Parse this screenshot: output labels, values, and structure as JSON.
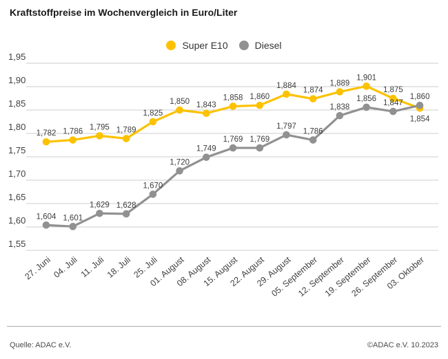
{
  "title": "Kraftstoffpreise im Wochenvergleich in Euro/Liter",
  "legend": {
    "items": [
      {
        "label": "Super E10",
        "color": "#FCC200"
      },
      {
        "label": "Diesel",
        "color": "#919191"
      }
    ]
  },
  "footer": {
    "source": "Quelle: ADAC e.V.",
    "copyright": "©ADAC e.V. 10.2023"
  },
  "colors": {
    "grid": "#cccccc",
    "axis_text": "#404040",
    "point_label": "#3c3c3c"
  },
  "chart_data": {
    "type": "line",
    "title": "Kraftstoffpreise im Wochenvergleich in Euro/Liter",
    "xlabel": "",
    "ylabel": "Euro/Liter",
    "ylim": [
      1.55,
      1.95
    ],
    "grid": true,
    "legend_position": "top-center",
    "yticks": [
      1.95,
      1.9,
      1.85,
      1.8,
      1.75,
      1.7,
      1.65,
      1.6,
      1.55
    ],
    "categories": [
      "27. Juni",
      "04. Juli",
      "11. Juli",
      "18. Juli",
      "25. Juli",
      "01. August",
      "08. August",
      "15. August",
      "22. August",
      "29. August",
      "05. September",
      "12. September",
      "19. September",
      "26. September",
      "03. Oktober"
    ],
    "series": [
      {
        "name": "Super E10",
        "color": "#FCC200",
        "values": [
          1.782,
          1.786,
          1.795,
          1.789,
          1.825,
          1.85,
          1.843,
          1.858,
          1.86,
          1.884,
          1.874,
          1.889,
          1.901,
          1.875,
          1.854
        ],
        "label_below": [
          14
        ]
      },
      {
        "name": "Diesel",
        "color": "#919191",
        "values": [
          1.604,
          1.601,
          1.629,
          1.628,
          1.67,
          1.72,
          1.749,
          1.769,
          1.769,
          1.797,
          1.786,
          1.838,
          1.856,
          1.847,
          1.86
        ],
        "label_below": []
      }
    ]
  }
}
